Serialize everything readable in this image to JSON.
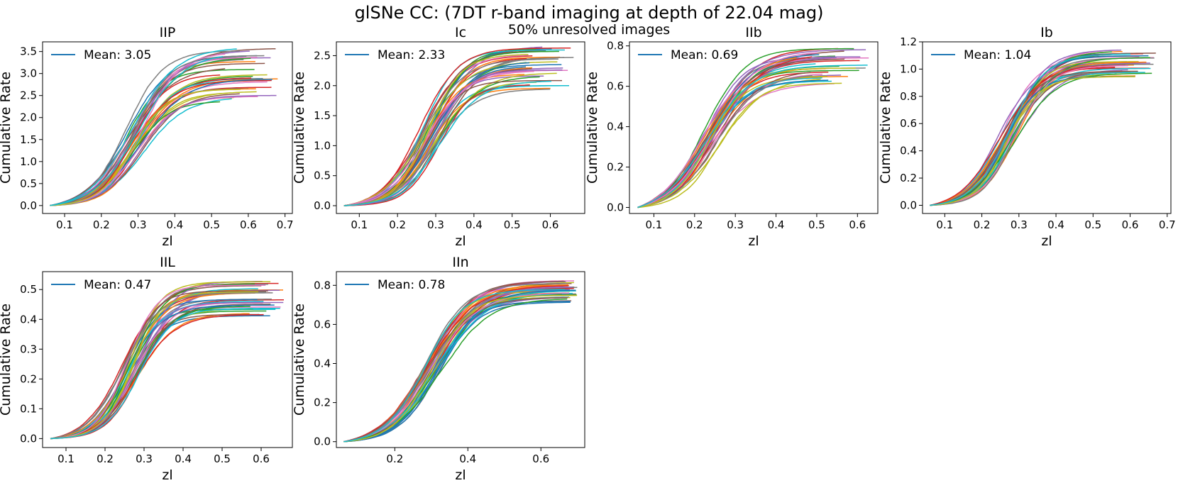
{
  "figure": {
    "title": "glSNe CC: (7DT  r-band imaging at depth of 22.04 mag)",
    "subtitle": "50% unresolved images",
    "series_palette": [
      "#1f77b4",
      "#ff7f0e",
      "#2ca02c",
      "#d62728",
      "#9467bd",
      "#8c564b",
      "#e377c2",
      "#7f7f7f",
      "#bcbd22",
      "#17becf"
    ],
    "n_realizations": 40,
    "legend_line_color": "#1f77b4"
  },
  "chart_data": [
    {
      "type": "line",
      "title": "IIP",
      "xlabel": "zl",
      "ylabel": "Cumulative Rate",
      "legend": "Mean: 3.05",
      "mean": 3.05,
      "xlim": [
        0.04,
        0.72
      ],
      "ylim": [
        -0.18,
        3.72
      ],
      "xticks": [
        0.1,
        0.2,
        0.3,
        0.4,
        0.5,
        0.6,
        0.7
      ],
      "xtick_labels": [
        "0.1",
        "0.2",
        "0.3",
        "0.4",
        "0.5",
        "0.6",
        "0.7"
      ],
      "yticks": [
        0,
        0.5,
        1,
        1.5,
        2,
        2.5,
        3,
        3.5
      ],
      "ytick_labels": [
        "0.0",
        "0.5",
        "1.0",
        "1.5",
        "2.0",
        "2.5",
        "3.0",
        "3.5"
      ],
      "curve": {
        "x0": 0.06,
        "xmid": 0.29,
        "width": 0.055,
        "sat": 0.45,
        "end_min": 0.52,
        "end_max": 0.68,
        "final_min": 2.35,
        "final_max": 3.6
      }
    },
    {
      "type": "line",
      "title": "Ic",
      "xlabel": "zl",
      "ylabel": "Cumulative Rate",
      "legend": "Mean: 2.33",
      "mean": 2.33,
      "xlim": [
        0.04,
        0.69
      ],
      "ylim": [
        -0.13,
        2.73
      ],
      "xticks": [
        0.1,
        0.2,
        0.3,
        0.4,
        0.5,
        0.6
      ],
      "xtick_labels": [
        "0.1",
        "0.2",
        "0.3",
        "0.4",
        "0.5",
        "0.6"
      ],
      "yticks": [
        0,
        0.5,
        1,
        1.5,
        2,
        2.5
      ],
      "ytick_labels": [
        "0.0",
        "0.5",
        "1.0",
        "1.5",
        "2.0",
        "2.5"
      ],
      "curve": {
        "x0": 0.06,
        "xmid": 0.285,
        "width": 0.05,
        "sat": 0.42,
        "end_min": 0.53,
        "end_max": 0.67,
        "final_min": 1.93,
        "final_max": 2.65
      }
    },
    {
      "type": "line",
      "title": "IIb",
      "xlabel": "zl",
      "ylabel": "Cumulative Rate",
      "legend": "Mean: 0.69",
      "mean": 0.69,
      "xlim": [
        0.04,
        0.65
      ],
      "ylim": [
        -0.03,
        0.82
      ],
      "xticks": [
        0.1,
        0.2,
        0.3,
        0.4,
        0.5,
        0.6
      ],
      "xtick_labels": [
        "0.1",
        "0.2",
        "0.3",
        "0.4",
        "0.5",
        "0.6"
      ],
      "yticks": [
        0,
        0.2,
        0.4,
        0.6,
        0.8
      ],
      "ytick_labels": [
        "0.0",
        "0.2",
        "0.4",
        "0.6",
        "0.8"
      ],
      "curve": {
        "x0": 0.06,
        "xmid": 0.24,
        "width": 0.055,
        "sat": 0.4,
        "end_min": 0.45,
        "end_max": 0.63,
        "final_min": 0.6,
        "final_max": 0.79
      }
    },
    {
      "type": "line",
      "title": "Ib",
      "xlabel": "zl",
      "ylabel": "Cumulative Rate",
      "legend": "Mean: 1.04",
      "mean": 1.04,
      "xlim": [
        0.04,
        0.71
      ],
      "ylim": [
        -0.06,
        1.2
      ],
      "xticks": [
        0.1,
        0.2,
        0.3,
        0.4,
        0.5,
        0.6,
        0.7
      ],
      "xtick_labels": [
        "0.1",
        "0.2",
        "0.3",
        "0.4",
        "0.5",
        "0.6",
        "0.7"
      ],
      "yticks": [
        0,
        0.2,
        0.4,
        0.6,
        0.8,
        1,
        1.2
      ],
      "ytick_labels": [
        "0.0",
        "0.2",
        "0.4",
        "0.6",
        "0.8",
        "1.0",
        "1.2"
      ],
      "curve": {
        "x0": 0.06,
        "xmid": 0.27,
        "width": 0.05,
        "sat": 0.42,
        "end_min": 0.55,
        "end_max": 0.67,
        "final_min": 0.94,
        "final_max": 1.14
      }
    },
    {
      "type": "line",
      "title": "IIL",
      "xlabel": "zl",
      "ylabel": "Cumulative Rate",
      "legend": "Mean: 0.47",
      "mean": 0.47,
      "xlim": [
        0.04,
        0.68
      ],
      "ylim": [
        -0.03,
        0.56
      ],
      "xticks": [
        0.1,
        0.2,
        0.3,
        0.4,
        0.5,
        0.6
      ],
      "xtick_labels": [
        "0.1",
        "0.2",
        "0.3",
        "0.4",
        "0.5",
        "0.6"
      ],
      "yticks": [
        0,
        0.1,
        0.2,
        0.3,
        0.4,
        0.5
      ],
      "ytick_labels": [
        "0.0",
        "0.1",
        "0.2",
        "0.3",
        "0.4",
        "0.5"
      ],
      "curve": {
        "x0": 0.06,
        "xmid": 0.27,
        "width": 0.045,
        "sat": 0.42,
        "end_min": 0.57,
        "end_max": 0.66,
        "final_min": 0.41,
        "final_max": 0.53
      }
    },
    {
      "type": "line",
      "title": "IIn",
      "xlabel": "zl",
      "ylabel": "Cumulative Rate",
      "legend": "Mean: 0.78",
      "mean": 0.78,
      "xlim": [
        0.04,
        0.72
      ],
      "ylim": [
        -0.03,
        0.87
      ],
      "xticks": [
        0.2,
        0.4,
        0.6
      ],
      "xtick_labels": [
        "0.2",
        "0.4",
        "0.6"
      ],
      "yticks": [
        0,
        0.2,
        0.4,
        0.6,
        0.8
      ],
      "ytick_labels": [
        "0.0",
        "0.2",
        "0.4",
        "0.6",
        "0.8"
      ],
      "curve": {
        "x0": 0.06,
        "xmid": 0.3,
        "width": 0.06,
        "sat": 0.5,
        "end_min": 0.65,
        "end_max": 0.7,
        "final_min": 0.71,
        "final_max": 0.83
      }
    }
  ]
}
